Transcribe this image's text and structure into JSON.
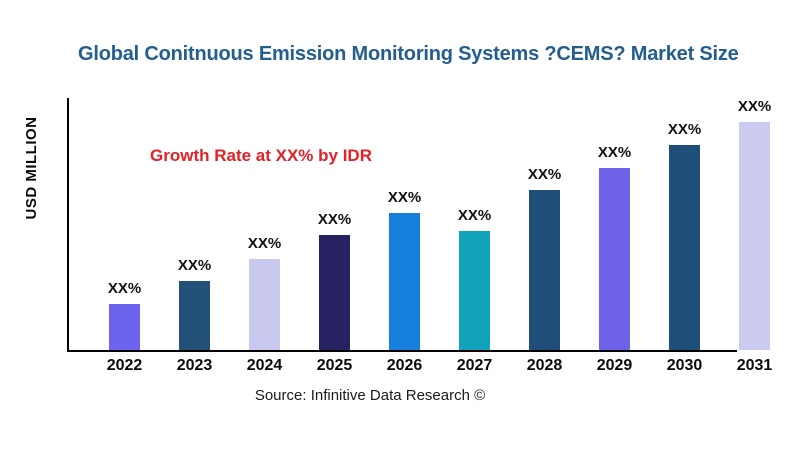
{
  "title": "Global Conitnuous Emission Monitoring Systems ?CEMS? Market Size",
  "y_axis_label": "USD MILLION",
  "annotation": "Growth Rate at XX% by IDR",
  "source": "Source: Infinitive Data Research ©",
  "colors": {
    "title": "#235E8F",
    "annotation": "#E22128",
    "axis": "#000000",
    "label_text": "#111111"
  },
  "chart_data": {
    "type": "bar",
    "title": "Global Conitnuous Emission Monitoring Systems ?CEMS? Market Size",
    "ylabel": "USD MILLION",
    "xlabel": "",
    "categories": [
      "2022",
      "2023",
      "2024",
      "2025",
      "2026",
      "2027",
      "2028",
      "2029",
      "2030",
      "2031"
    ],
    "values_relative": [
      46,
      69,
      91,
      115,
      137,
      119,
      160,
      182,
      205,
      228
    ],
    "value_labels": [
      "XX%",
      "XX%",
      "XX%",
      "XX%",
      "XX%",
      "XX%",
      "XX%",
      "XX%",
      "XX%",
      "XX%"
    ],
    "bar_colors": [
      "#6E63EE",
      "#235077",
      "#C9C9EF",
      "#262262",
      "#157FDB",
      "#10A3B9",
      "#1F4E79",
      "#6E63E8",
      "#1F4E79",
      "#CBCBEF"
    ],
    "grid": false,
    "legend_position": "none",
    "y_axis_ticks": [],
    "annotation_text": "Growth Rate at XX% by IDR"
  }
}
